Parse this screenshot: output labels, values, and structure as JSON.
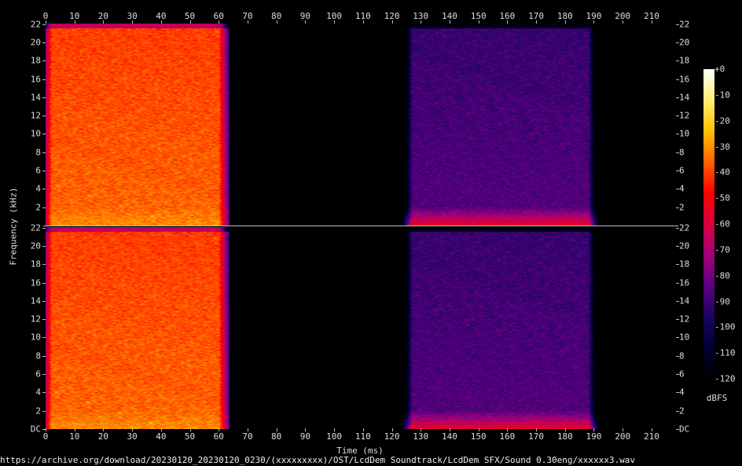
{
  "chart_data": {
    "type": "heatmap",
    "subtype": "spectrogram",
    "channels": 2,
    "xlabel": "Time (ms)",
    "ylabel": "Frequency (kHz)",
    "xlim": [
      0,
      218
    ],
    "ylim": [
      0,
      22.05
    ],
    "x_ticks": [
      "0",
      "10",
      "20",
      "30",
      "40",
      "50",
      "60",
      "70",
      "80",
      "90",
      "100",
      "110",
      "120",
      "130",
      "140",
      "150",
      "160",
      "170",
      "180",
      "190",
      "200",
      "210"
    ],
    "y_ticks": [
      "DC",
      "2",
      "4",
      "6",
      "8",
      "10",
      "12",
      "14",
      "16",
      "18",
      "20",
      "22"
    ],
    "colorbar": {
      "label": "dBFS",
      "range": [
        -120,
        0
      ],
      "ticks": [
        "+0",
        "-10",
        "-20",
        "-30",
        "-40",
        "-50",
        "-60",
        "-70",
        "-80",
        "-90",
        "-100",
        "-110",
        "-120"
      ],
      "colors": [
        "#000000",
        "#000033",
        "#1a0560",
        "#5a0080",
        "#a0007a",
        "#d8003f",
        "#ff0000",
        "#ff6000",
        "#ffc000",
        "#fff070",
        "#ffffff"
      ]
    },
    "segments": [
      {
        "start_ms": 0,
        "end_ms": 62,
        "level_dbfs_approx": -35,
        "note_level_low_freq_dbfs": -30
      },
      {
        "start_ms": 125,
        "end_ms": 190,
        "level_dbfs_approx": -85,
        "note_level_low_freq_dbfs": -55
      }
    ],
    "background_dbfs": -120
  },
  "footer": {
    "source": "https://archive.org/download/20230120_20230120_0230/(xxxxxxxxx)/OST/LcdDem Soundtrack/LcdDem SFX/Sound 0.30eng/xxxxxx3.wav"
  }
}
